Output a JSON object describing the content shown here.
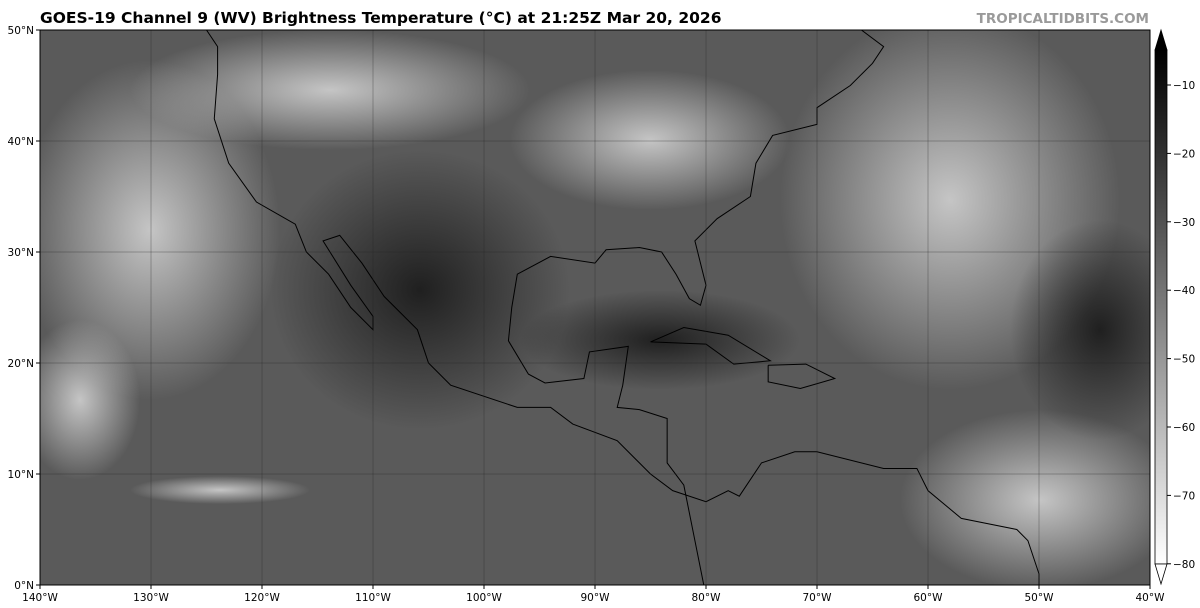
{
  "header": {
    "title": "GOES-19 Channel 9 (WV) Brightness Temperature (°C) at 21:25Z Mar 20, 2026",
    "brand": "TROPICALTIDBITS.COM"
  },
  "map": {
    "lon_range": [
      -140,
      -40
    ],
    "lat_range": [
      0,
      50
    ],
    "lat_labels": [
      "0°N",
      "10°N",
      "20°N",
      "30°N",
      "40°N",
      "50°N"
    ],
    "lon_labels": [
      "140°W",
      "130°W",
      "120°W",
      "110°W",
      "100°W",
      "90°W",
      "80°W",
      "70°W",
      "60°W",
      "50°W",
      "40°W"
    ],
    "gridlines": true
  },
  "colorbar": {
    "ticks": [
      "−10",
      "−20",
      "−30",
      "−40",
      "−50",
      "−60",
      "−70",
      "−80"
    ],
    "range": [
      -82,
      -5
    ],
    "colors": {
      "warm": "#000000",
      "cold": "#ffffff"
    },
    "extend": "both"
  }
}
